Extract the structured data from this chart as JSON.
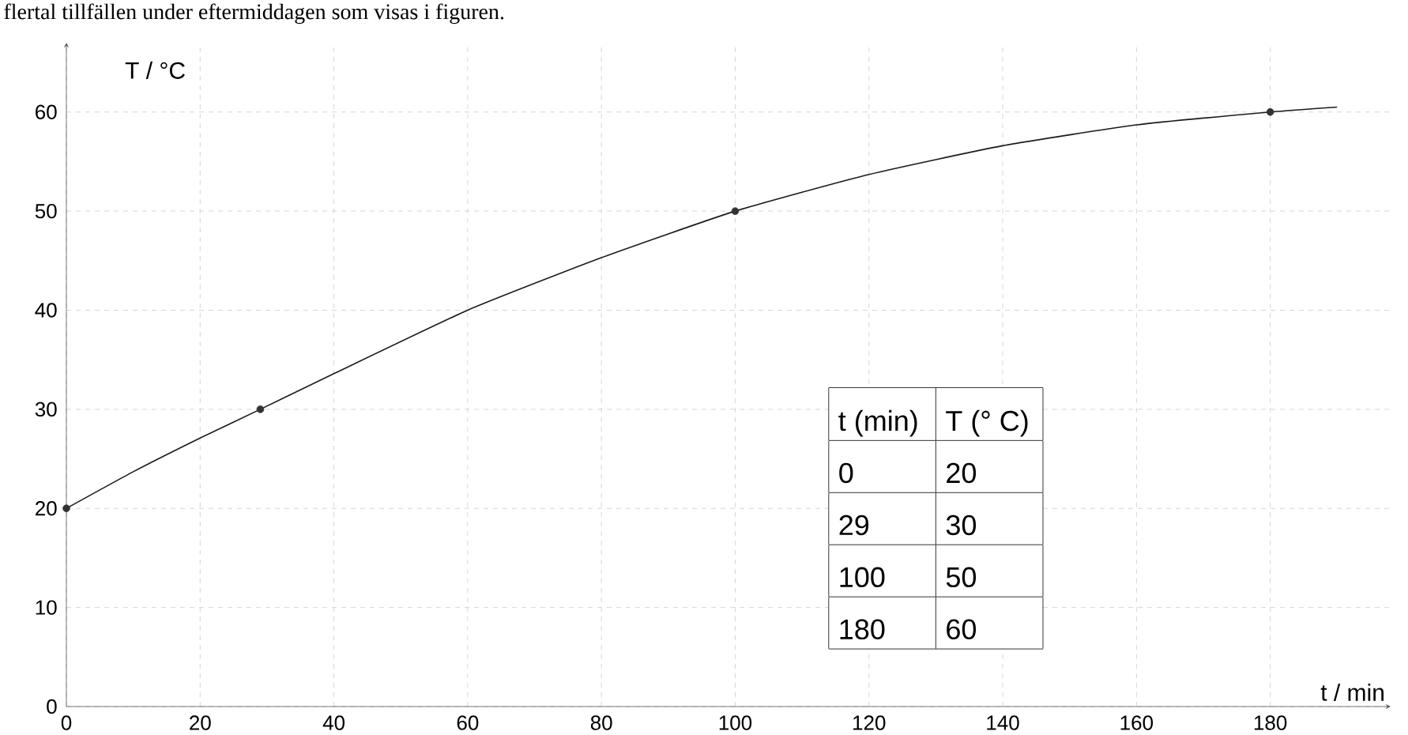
{
  "chart_data": {
    "type": "line",
    "title": "flertal tillfällen under eftermiddagen som visas i figuren.",
    "xlabel": "t / min",
    "ylabel": "T / °C",
    "annotations": [
      "t (min)",
      "T (° C)",
      "0",
      "20",
      "29",
      "30",
      "100",
      "50",
      "180",
      "60"
    ],
    "xlim": [
      0,
      198
    ],
    "ylim": [
      0,
      67
    ],
    "xticks": [
      0,
      20,
      40,
      60,
      80,
      100,
      120,
      140,
      160,
      180
    ],
    "yticks": [
      0,
      10,
      20,
      30,
      40,
      50,
      60
    ],
    "grid": true,
    "series": [
      {
        "color": "#1a1a1a",
        "marker": "none",
        "x": [
          0,
          10,
          20,
          29,
          40,
          60,
          80,
          100,
          120,
          140,
          160,
          180,
          190
        ],
        "values": [
          20,
          23.7,
          27.1,
          30,
          33.6,
          40,
          45.3,
          50,
          53.7,
          56.6,
          58.7,
          60,
          60.5
        ]
      },
      {
        "type": "scatter",
        "color": "#333333",
        "marker": "circle",
        "x": [
          0,
          29,
          100,
          180
        ],
        "values": [
          20,
          30,
          50,
          60
        ]
      }
    ]
  }
}
